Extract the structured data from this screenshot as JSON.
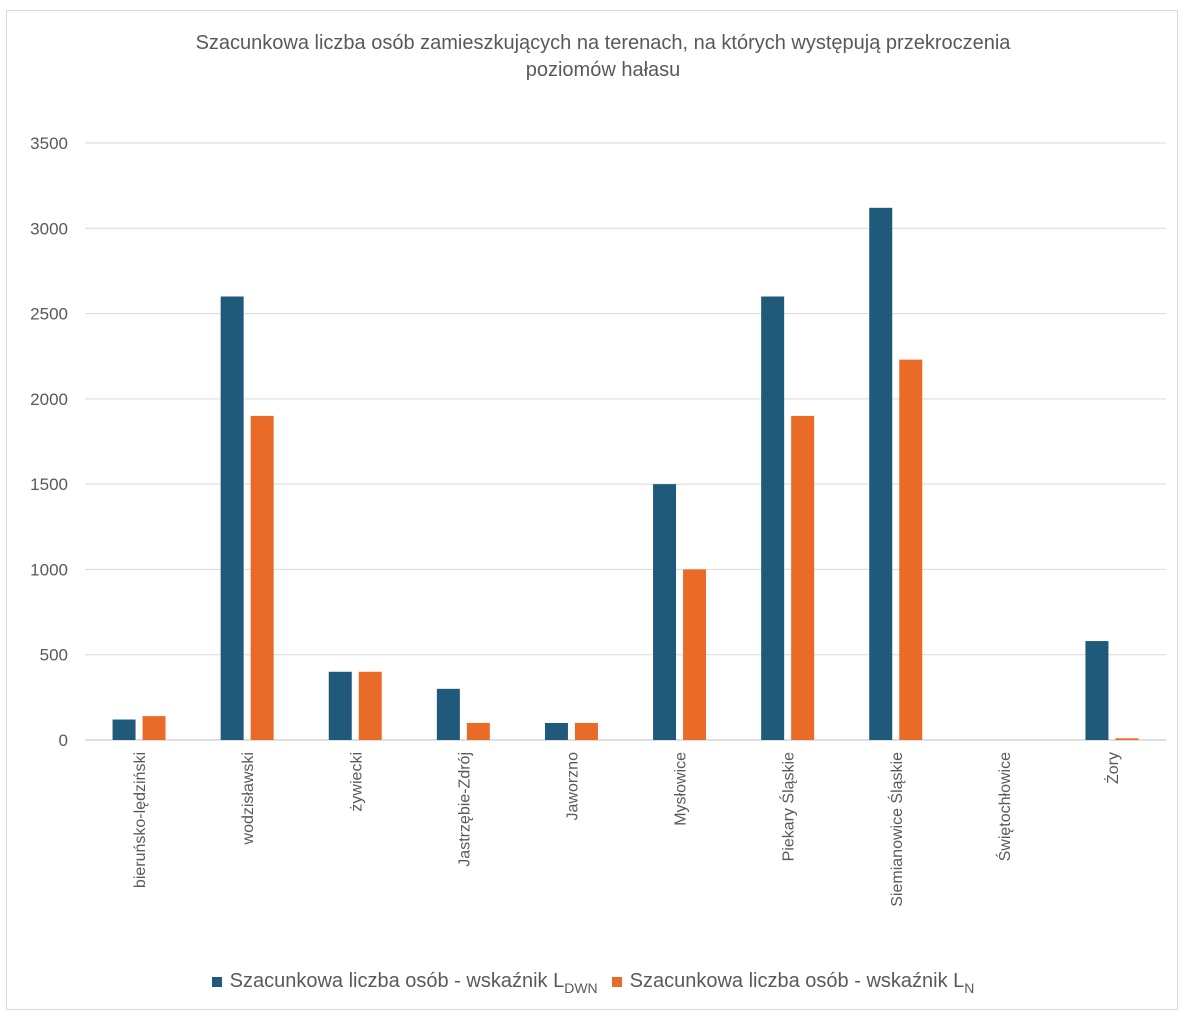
{
  "chart_data": {
    "type": "bar",
    "title": "Szacunkowa liczba osób zamieszkujących na terenach, na których występują przekroczenia poziomów hałasu",
    "categories": [
      "bieruńsko-lędziński",
      "wodzisławski",
      "żywiecki",
      "Jastrzębie-Zdrój",
      "Jaworzno",
      "Mysłowice",
      "Piekary Śląskie",
      "Siemianowice Śląskie",
      "Świętochłowice",
      "Żory"
    ],
    "series": [
      {
        "name": "Szacunkowa liczba osób - wskaźnik L",
        "name_sub": "DWN",
        "color": "#1f5a7a",
        "values": [
          120,
          2600,
          400,
          300,
          100,
          1500,
          2600,
          3120,
          0,
          580
        ]
      },
      {
        "name": "Szacunkowa liczba osób - wskaźnik L",
        "name_sub": "N",
        "color": "#ea6b28",
        "values": [
          140,
          1900,
          400,
          100,
          100,
          1000,
          1900,
          2230,
          0,
          10
        ]
      }
    ],
    "y_ticks": [
      0,
      500,
      1000,
      1500,
      2000,
      2500,
      3000,
      3500
    ],
    "ylim": [
      0,
      3500
    ],
    "grid": true,
    "legend_position": "bottom"
  }
}
